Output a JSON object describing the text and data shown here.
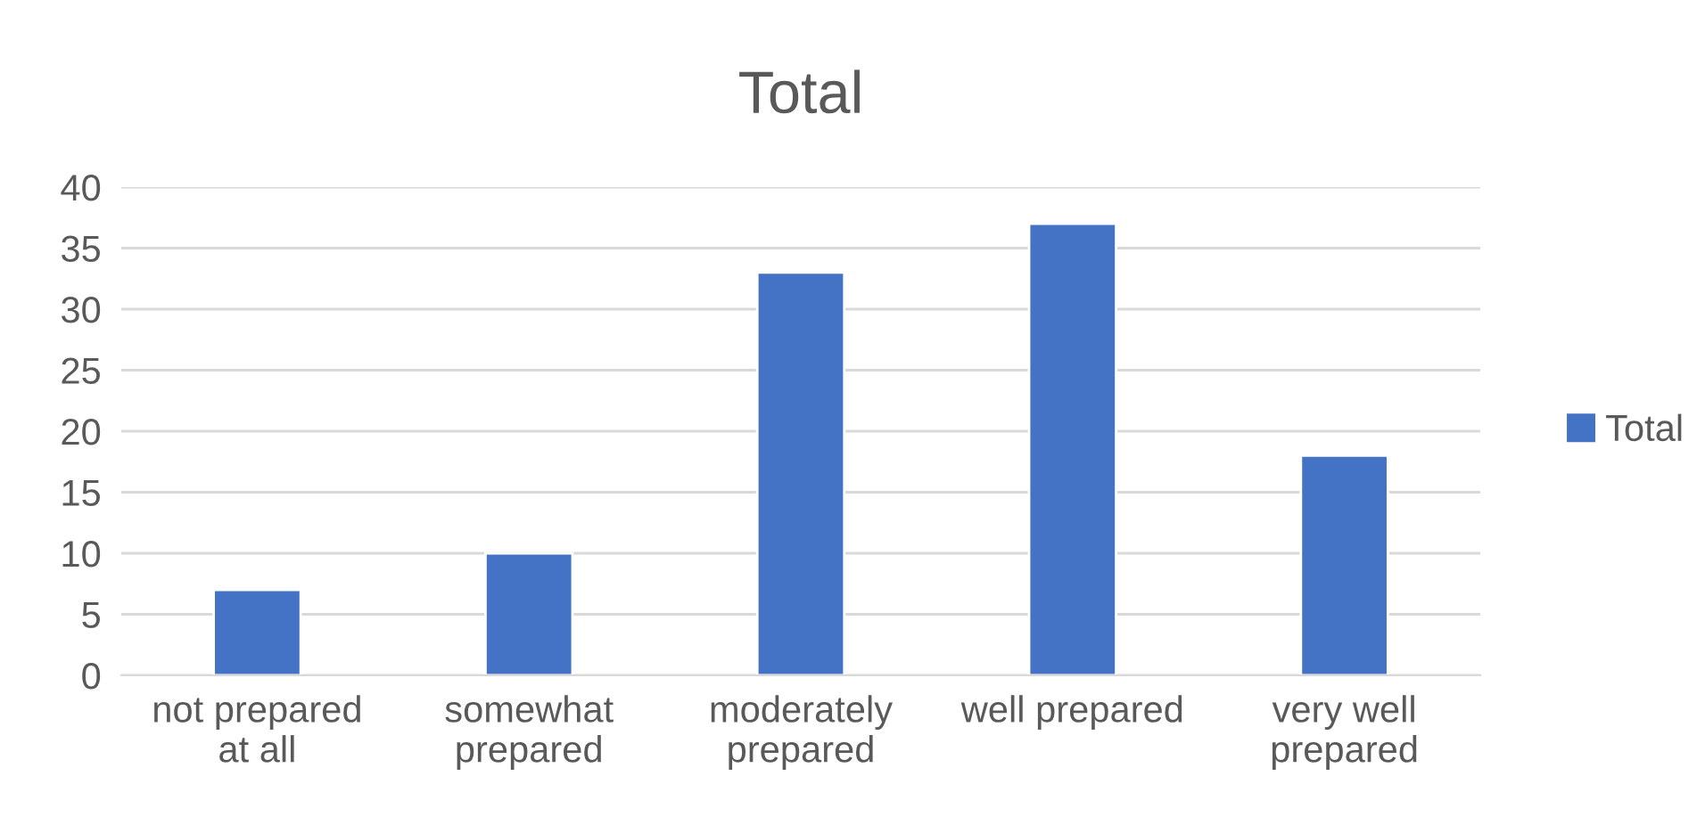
{
  "chart_data": {
    "type": "bar",
    "title": "Total",
    "categories": [
      "not prepared at all",
      "somewhat prepared",
      "moderately prepared",
      "well prepared",
      "very well prepared"
    ],
    "series": [
      {
        "name": "Total",
        "color": "#4472c4",
        "values": [
          7,
          10,
          33,
          37,
          18
        ]
      }
    ],
    "ylim": [
      0,
      40
    ],
    "yticks": [
      0,
      5,
      10,
      15,
      20,
      25,
      30,
      35,
      40
    ],
    "grid": "y",
    "legend": "right"
  }
}
